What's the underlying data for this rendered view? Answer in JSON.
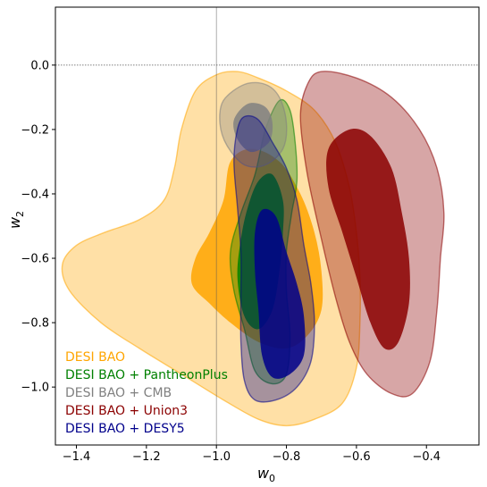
{
  "chart_data": {
    "type": "contour",
    "xlabel": "w",
    "xlabel_sub": "0",
    "ylabel": "w",
    "ylabel_sub": "2",
    "xlim": [
      -1.46,
      -0.25
    ],
    "ylim": [
      -1.18,
      0.18
    ],
    "x_ticks": [
      -1.4,
      -1.2,
      -1.0,
      -0.8,
      -0.6,
      -0.4
    ],
    "x_tick_labels": [
      "−1.4",
      "−1.2",
      "−1.0",
      "−0.8",
      "−0.6",
      "−0.4"
    ],
    "y_ticks": [
      0.0,
      -0.2,
      -0.4,
      -0.6,
      -0.8,
      -1.0
    ],
    "y_tick_labels": [
      "0.0",
      "−0.2",
      "−0.4",
      "−0.6",
      "−0.8",
      "−1.0"
    ],
    "reference_lines": [
      {
        "axis": "x",
        "value": -1.0
      },
      {
        "axis": "y",
        "value": 0.0
      }
    ],
    "legend_position": "bottom-left",
    "series": [
      {
        "name": "DESI BAO",
        "color": "#FFA500",
        "outer_contour": [
          [
            -0.94,
            -0.02
          ],
          [
            -0.88,
            -0.04
          ],
          [
            -0.8,
            -0.08
          ],
          [
            -0.72,
            -0.14
          ],
          [
            -0.66,
            -0.24
          ],
          [
            -0.62,
            -0.38
          ],
          [
            -0.6,
            -0.52
          ],
          [
            -0.59,
            -0.66
          ],
          [
            -0.59,
            -0.8
          ],
          [
            -0.6,
            -0.94
          ],
          [
            -0.64,
            -1.05
          ],
          [
            -0.72,
            -1.1
          ],
          [
            -0.8,
            -1.12
          ],
          [
            -0.88,
            -1.1
          ],
          [
            -0.98,
            -1.04
          ],
          [
            -1.1,
            -0.96
          ],
          [
            -1.22,
            -0.88
          ],
          [
            -1.33,
            -0.8
          ],
          [
            -1.42,
            -0.7
          ],
          [
            -1.44,
            -0.62
          ],
          [
            -1.4,
            -0.56
          ],
          [
            -1.32,
            -0.52
          ],
          [
            -1.22,
            -0.48
          ],
          [
            -1.15,
            -0.42
          ],
          [
            -1.12,
            -0.32
          ],
          [
            -1.1,
            -0.2
          ],
          [
            -1.06,
            -0.08
          ],
          [
            -1.0,
            -0.03
          ]
        ],
        "inner_contour": [
          [
            -0.96,
            -0.3
          ],
          [
            -0.9,
            -0.26
          ],
          [
            -0.82,
            -0.3
          ],
          [
            -0.76,
            -0.4
          ],
          [
            -0.72,
            -0.52
          ],
          [
            -0.7,
            -0.64
          ],
          [
            -0.7,
            -0.76
          ],
          [
            -0.74,
            -0.84
          ],
          [
            -0.8,
            -0.88
          ],
          [
            -0.88,
            -0.86
          ],
          [
            -0.96,
            -0.8
          ],
          [
            -1.02,
            -0.74
          ],
          [
            -1.07,
            -0.68
          ],
          [
            -1.06,
            -0.6
          ],
          [
            -1.02,
            -0.52
          ],
          [
            -0.98,
            -0.42
          ]
        ]
      },
      {
        "name": "DESI BAO + PantheonPlus",
        "color": "#008000",
        "outer_contour": [
          [
            -0.82,
            -0.11
          ],
          [
            -0.79,
            -0.14
          ],
          [
            -0.775,
            -0.24
          ],
          [
            -0.77,
            -0.36
          ],
          [
            -0.785,
            -0.46
          ],
          [
            -0.8,
            -0.58
          ],
          [
            -0.8,
            -0.7
          ],
          [
            -0.79,
            -0.84
          ],
          [
            -0.8,
            -0.96
          ],
          [
            -0.84,
            -0.99
          ],
          [
            -0.89,
            -0.95
          ],
          [
            -0.92,
            -0.82
          ],
          [
            -0.95,
            -0.7
          ],
          [
            -0.96,
            -0.58
          ],
          [
            -0.93,
            -0.46
          ],
          [
            -0.89,
            -0.34
          ],
          [
            -0.86,
            -0.2
          ]
        ],
        "inner_contour": [
          [
            -0.88,
            -0.36
          ],
          [
            -0.84,
            -0.34
          ],
          [
            -0.81,
            -0.42
          ],
          [
            -0.81,
            -0.52
          ],
          [
            -0.82,
            -0.64
          ],
          [
            -0.84,
            -0.76
          ],
          [
            -0.88,
            -0.82
          ],
          [
            -0.92,
            -0.78
          ],
          [
            -0.94,
            -0.66
          ],
          [
            -0.93,
            -0.54
          ],
          [
            -0.91,
            -0.44
          ]
        ]
      },
      {
        "name": "DESI BAO + CMB",
        "color": "#808080",
        "outer_contour": [
          [
            -0.92,
            -0.06
          ],
          [
            -0.86,
            -0.06
          ],
          [
            -0.82,
            -0.1
          ],
          [
            -0.8,
            -0.18
          ],
          [
            -0.81,
            -0.26
          ],
          [
            -0.86,
            -0.31
          ],
          [
            -0.92,
            -0.31
          ],
          [
            -0.97,
            -0.25
          ],
          [
            -0.99,
            -0.18
          ],
          [
            -0.98,
            -0.11
          ]
        ],
        "inner_contour": [
          [
            -0.91,
            -0.12
          ],
          [
            -0.86,
            -0.13
          ],
          [
            -0.84,
            -0.18
          ],
          [
            -0.85,
            -0.24
          ],
          [
            -0.9,
            -0.27
          ],
          [
            -0.94,
            -0.23
          ],
          [
            -0.95,
            -0.17
          ]
        ]
      },
      {
        "name": "DESI BAO + Union3",
        "color": "#8B0000",
        "outer_contour": [
          [
            -0.7,
            -0.02
          ],
          [
            -0.6,
            -0.04
          ],
          [
            -0.5,
            -0.1
          ],
          [
            -0.42,
            -0.2
          ],
          [
            -0.37,
            -0.32
          ],
          [
            -0.35,
            -0.46
          ],
          [
            -0.36,
            -0.6
          ],
          [
            -0.37,
            -0.76
          ],
          [
            -0.39,
            -0.92
          ],
          [
            -0.44,
            -1.02
          ],
          [
            -0.5,
            -1.02
          ],
          [
            -0.57,
            -0.96
          ],
          [
            -0.62,
            -0.86
          ],
          [
            -0.66,
            -0.72
          ],
          [
            -0.7,
            -0.54
          ],
          [
            -0.74,
            -0.34
          ],
          [
            -0.76,
            -0.16
          ],
          [
            -0.74,
            -0.06
          ]
        ],
        "inner_contour": [
          [
            -0.62,
            -0.2
          ],
          [
            -0.56,
            -0.22
          ],
          [
            -0.5,
            -0.32
          ],
          [
            -0.47,
            -0.46
          ],
          [
            -0.45,
            -0.6
          ],
          [
            -0.45,
            -0.74
          ],
          [
            -0.48,
            -0.86
          ],
          [
            -0.52,
            -0.88
          ],
          [
            -0.56,
            -0.8
          ],
          [
            -0.6,
            -0.66
          ],
          [
            -0.64,
            -0.52
          ],
          [
            -0.68,
            -0.38
          ],
          [
            -0.68,
            -0.26
          ]
        ]
      },
      {
        "name": "DESI BAO + DESY5",
        "color": "#00008B",
        "outer_contour": [
          [
            -0.92,
            -0.16
          ],
          [
            -0.88,
            -0.17
          ],
          [
            -0.84,
            -0.24
          ],
          [
            -0.8,
            -0.32
          ],
          [
            -0.77,
            -0.42
          ],
          [
            -0.75,
            -0.56
          ],
          [
            -0.73,
            -0.68
          ],
          [
            -0.72,
            -0.8
          ],
          [
            -0.73,
            -0.92
          ],
          [
            -0.77,
            -1.0
          ],
          [
            -0.83,
            -1.04
          ],
          [
            -0.89,
            -1.04
          ],
          [
            -0.92,
            -0.98
          ],
          [
            -0.93,
            -0.86
          ],
          [
            -0.93,
            -0.72
          ],
          [
            -0.93,
            -0.58
          ],
          [
            -0.94,
            -0.44
          ],
          [
            -0.95,
            -0.3
          ],
          [
            -0.94,
            -0.2
          ]
        ],
        "inner_contour": [
          [
            -0.87,
            -0.45
          ],
          [
            -0.83,
            -0.47
          ],
          [
            -0.8,
            -0.58
          ],
          [
            -0.77,
            -0.68
          ],
          [
            -0.75,
            -0.78
          ],
          [
            -0.75,
            -0.9
          ],
          [
            -0.79,
            -0.96
          ],
          [
            -0.84,
            -0.97
          ],
          [
            -0.87,
            -0.9
          ],
          [
            -0.88,
            -0.76
          ],
          [
            -0.89,
            -0.64
          ],
          [
            -0.89,
            -0.52
          ]
        ]
      }
    ]
  }
}
